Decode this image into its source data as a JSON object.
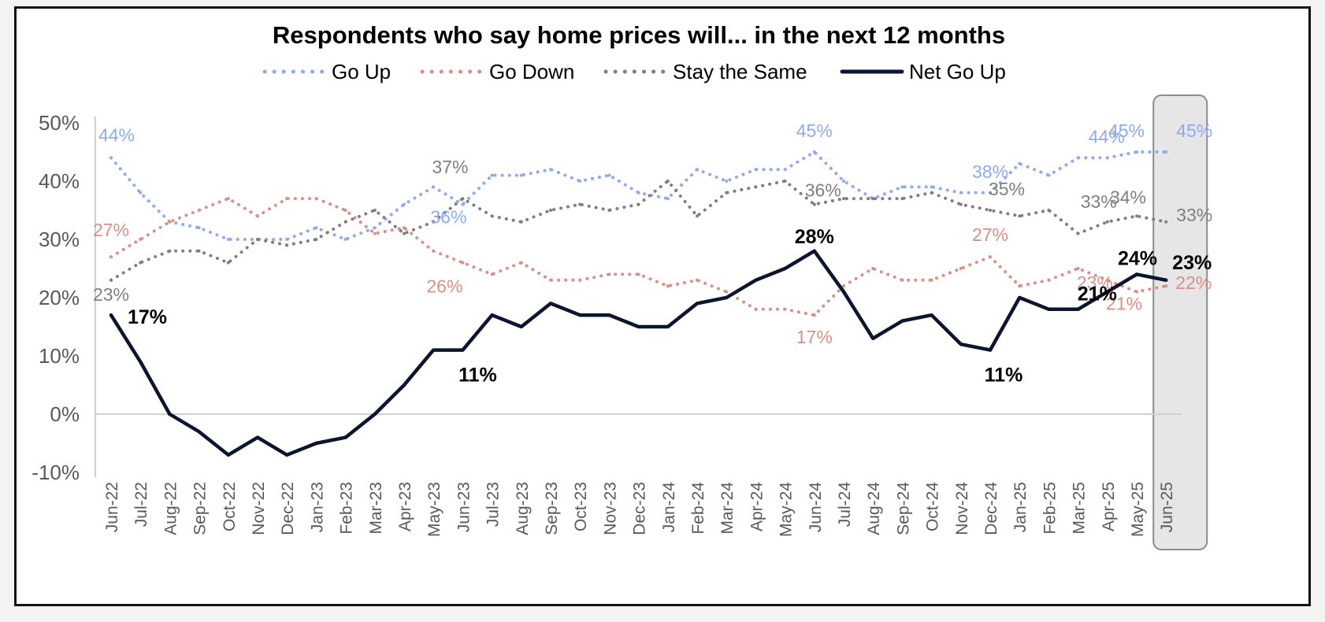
{
  "chart_data": {
    "type": "line",
    "title": "Respondents who say home prices will... in the next 12 months",
    "legend_position": "top",
    "grid": false,
    "ylim": [
      -10,
      50
    ],
    "y_ticks": [
      "50%",
      "40%",
      "30%",
      "20%",
      "10%",
      "0%",
      "-10%"
    ],
    "categories": [
      "Jun-22",
      "Jul-22",
      "Aug-22",
      "Sep-22",
      "Oct-22",
      "Nov-22",
      "Dec-22",
      "Jan-23",
      "Feb-23",
      "Mar-23",
      "Apr-23",
      "May-23",
      "Jun-23",
      "Jul-23",
      "Aug-23",
      "Sep-23",
      "Oct-23",
      "Nov-23",
      "Dec-23",
      "Jan-24",
      "Feb-24",
      "Mar-24",
      "Apr-24",
      "May-24",
      "Jun-24",
      "Jul-24",
      "Aug-24",
      "Sep-24",
      "Oct-24",
      "Nov-24",
      "Dec-24",
      "Jan-25",
      "Feb-25",
      "Mar-25",
      "Apr-25",
      "May-25",
      "Jun-25"
    ],
    "highlighted_category": "Jun-25",
    "series": [
      {
        "name": "Go Up",
        "style": "dotted",
        "color": "#8eaaf0",
        "values": [
          44,
          38,
          33,
          32,
          30,
          30,
          30,
          32,
          30,
          32,
          36,
          39,
          36,
          41,
          41,
          42,
          40,
          41,
          38,
          37,
          42,
          40,
          42,
          42,
          45,
          40,
          37,
          39,
          39,
          38,
          38,
          43,
          41,
          44,
          44,
          45,
          45
        ]
      },
      {
        "name": "Go Down",
        "style": "dotted",
        "color": "#d99185",
        "values": [
          27,
          30,
          33,
          35,
          37,
          34,
          37,
          37,
          35,
          31,
          32,
          28,
          26,
          24,
          26,
          23,
          23,
          24,
          24,
          22,
          23,
          21,
          18,
          18,
          17,
          22,
          25,
          23,
          23,
          25,
          27,
          22,
          23,
          25,
          23,
          21,
          22
        ]
      },
      {
        "name": "Stay the Same",
        "style": "dotted",
        "color": "#7f7f7f",
        "values": [
          23,
          26,
          28,
          28,
          26,
          30,
          29,
          30,
          33,
          35,
          31,
          33,
          37,
          34,
          33,
          35,
          36,
          35,
          36,
          40,
          34,
          38,
          39,
          40,
          36,
          37,
          37,
          37,
          38,
          36,
          35,
          34,
          35,
          31,
          33,
          34,
          33
        ]
      },
      {
        "name": "Net Go Up",
        "style": "solid",
        "color": "#0b1530",
        "values": [
          17,
          9,
          0,
          -3,
          -7,
          -4,
          -7,
          -5,
          -4,
          0,
          5,
          11,
          11,
          17,
          15,
          19,
          17,
          17,
          15,
          15,
          19,
          20,
          23,
          25,
          28,
          21,
          13,
          16,
          17,
          12,
          11,
          20,
          18,
          18,
          21,
          24,
          23
        ]
      }
    ],
    "data_labels": [
      {
        "series": "Go Up",
        "index": 0,
        "text": "44%"
      },
      {
        "series": "Go Up",
        "index": 12,
        "text": "36%"
      },
      {
        "series": "Go Up",
        "index": 24,
        "text": "45%"
      },
      {
        "series": "Go Up",
        "index": 30,
        "text": "38%"
      },
      {
        "series": "Go Up",
        "index": 34,
        "text": "44%"
      },
      {
        "series": "Go Up",
        "index": 35,
        "text": "45%"
      },
      {
        "series": "Go Up",
        "index": 36,
        "text": "45%"
      },
      {
        "series": "Go Down",
        "index": 0,
        "text": "27%"
      },
      {
        "series": "Go Down",
        "index": 12,
        "text": "26%"
      },
      {
        "series": "Go Down",
        "index": 24,
        "text": "17%"
      },
      {
        "series": "Go Down",
        "index": 30,
        "text": "27%"
      },
      {
        "series": "Go Down",
        "index": 34,
        "text": "23%"
      },
      {
        "series": "Go Down",
        "index": 35,
        "text": "21%"
      },
      {
        "series": "Go Down",
        "index": 36,
        "text": "22%"
      },
      {
        "series": "Stay the Same",
        "index": 0,
        "text": "23%"
      },
      {
        "series": "Stay the Same",
        "index": 12,
        "text": "37%"
      },
      {
        "series": "Stay the Same",
        "index": 24,
        "text": "36%"
      },
      {
        "series": "Stay the Same",
        "index": 30,
        "text": "35%"
      },
      {
        "series": "Stay the Same",
        "index": 34,
        "text": "33%"
      },
      {
        "series": "Stay the Same",
        "index": 35,
        "text": "34%"
      },
      {
        "series": "Stay the Same",
        "index": 36,
        "text": "33%"
      },
      {
        "series": "Net Go Up",
        "index": 0,
        "text": "17%"
      },
      {
        "series": "Net Go Up",
        "index": 12,
        "text": "11%"
      },
      {
        "series": "Net Go Up",
        "index": 24,
        "text": "28%"
      },
      {
        "series": "Net Go Up",
        "index": 30,
        "text": "11%"
      },
      {
        "series": "Net Go Up",
        "index": 34,
        "text": "21%"
      },
      {
        "series": "Net Go Up",
        "index": 35,
        "text": "24%"
      },
      {
        "series": "Net Go Up",
        "index": 36,
        "text": "23%"
      }
    ]
  }
}
